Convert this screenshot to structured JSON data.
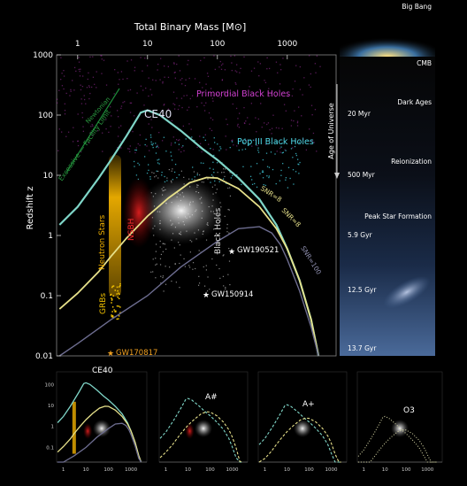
{
  "chart_data": {
    "type": "line",
    "title": "",
    "xlabel": "Total Binary Mass [M⊙]",
    "ylabel": "Redshift z",
    "x_scale": "log",
    "y_scale": "log",
    "xlim": [
      0.5,
      5000
    ],
    "ylim": [
      0.01,
      1000
    ],
    "x_ticks": [
      {
        "v": 1,
        "label": "1"
      },
      {
        "v": 10,
        "label": "10"
      },
      {
        "v": 100,
        "label": "100"
      },
      {
        "v": 1000,
        "label": "1000"
      }
    ],
    "y_ticks": [
      {
        "v": 0.01,
        "label": "0.01"
      },
      {
        "v": 0.1,
        "label": "0.1"
      },
      {
        "v": 1,
        "label": "1"
      },
      {
        "v": 10,
        "label": "10"
      },
      {
        "v": 100,
        "label": "100"
      },
      {
        "v": 1000,
        "label": "1000"
      }
    ],
    "series": [
      {
        "name": "CE40",
        "color": "#7fd6c8",
        "width": 2.2,
        "label": "CE40",
        "x": [
          0.55,
          1,
          2,
          3,
          5,
          8,
          10,
          15,
          30,
          60,
          100,
          200,
          400,
          700,
          1000,
          1500,
          2200,
          2800
        ],
        "y": [
          1.5,
          3,
          9,
          18,
          45,
          110,
          120,
          100,
          55,
          28,
          18,
          9,
          4,
          1.5,
          0.6,
          0.18,
          0.04,
          0.01
        ]
      },
      {
        "name": "SNR=8",
        "color": "#e6e08a",
        "width": 1.8,
        "label": "SNR=8",
        "x": [
          0.55,
          1,
          2,
          3,
          5,
          10,
          20,
          40,
          70,
          100,
          200,
          400,
          700,
          1000,
          1500,
          2200,
          2800
        ],
        "y": [
          0.06,
          0.11,
          0.25,
          0.45,
          0.9,
          2.1,
          4.2,
          7.5,
          9.2,
          9,
          6,
          3,
          1.3,
          0.6,
          0.18,
          0.04,
          0.01
        ]
      },
      {
        "name": "SNR=100",
        "color": "#6d6d90",
        "width": 1.4,
        "label": "SNR=100",
        "x": [
          0.55,
          1,
          3,
          10,
          30,
          100,
          200,
          400,
          600,
          800,
          1000,
          1500,
          2200,
          2800
        ],
        "y": [
          0.01,
          0.016,
          0.04,
          0.1,
          0.3,
          0.8,
          1.3,
          1.4,
          1.1,
          0.7,
          0.4,
          0.12,
          0.03,
          0.01
        ]
      }
    ],
    "regions": [
      {
        "label": "Primordial Black Holes",
        "color": "#d040d0"
      },
      {
        "label": "Pop III Black Holes",
        "color": "#50d8e8"
      },
      {
        "label": "Neutron Stars",
        "color": "#f0b000"
      },
      {
        "label": "NSBH",
        "color": "#e02020"
      },
      {
        "label": "Black Holes",
        "color": "#e0e0e0"
      },
      {
        "label": "GRBs",
        "color": "#f0c000"
      }
    ],
    "annotations": [
      {
        "label": "GW190521",
        "x": 150,
        "z": 0.8
      },
      {
        "label": "GW150914",
        "x": 65,
        "z": 0.09
      },
      {
        "label": "GW170817",
        "x": 2.7,
        "z": 0.01
      },
      {
        "label": "Newtonian"
      },
      {
        "label": "Excessive — Facility Limit"
      }
    ],
    "side_panel": {
      "axis_label": "Age of Universe",
      "epochs": [
        {
          "name": "Big Bang",
          "age": ""
        },
        {
          "name": "CMB",
          "age": ""
        },
        {
          "name": "Dark Ages",
          "age": "20 Myr"
        },
        {
          "name": "Reionization",
          "age": "500 Myr"
        },
        {
          "name": "Peak Star Formation",
          "age": "5.9 Gyr"
        },
        {
          "name": "",
          "age": "12.5 Gyr"
        },
        {
          "name": "",
          "age": "13.7 Gyr"
        }
      ]
    },
    "mini_panels": [
      {
        "label": "CE40",
        "x_ticks": [
          "1",
          "10",
          "100",
          "1000"
        ],
        "y_ticks": [
          "100",
          "10",
          "1",
          "0.1"
        ]
      },
      {
        "label": "A#",
        "x_ticks": [
          "1",
          "10",
          "100",
          "1000"
        ]
      },
      {
        "label": "A+",
        "x_ticks": [
          "1",
          "10",
          "100",
          "1000"
        ]
      },
      {
        "label": "O3",
        "x_ticks": [
          "1",
          "10",
          "100",
          "1000"
        ]
      }
    ]
  }
}
